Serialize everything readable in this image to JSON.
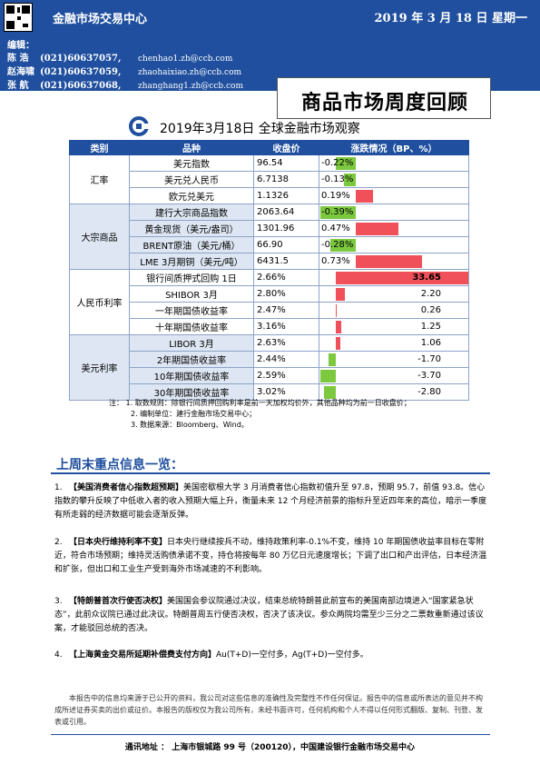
{
  "header": {
    "org_name": "金融市场交易中心",
    "date": "2019 年 3 月 18 日   星期一"
  },
  "editors": {
    "title": "编辑：",
    "list": [
      {
        "name": "陈  浩",
        "phone": "(021)60637057,",
        "email": "chenhao1.zh@ccb.com"
      },
      {
        "name": "赵海啸",
        "phone": "(021)60637059,",
        "email": "zhaohaixiao.zh@ccb.com"
      },
      {
        "name": "张  航",
        "phone": "(021)60637068,",
        "email": "zhanghang1.zh@ccb.com"
      }
    ]
  },
  "report_title": "商品市场周度回顾",
  "table": {
    "title": "2019年3月18日  全球金融市场观察",
    "headers": [
      "类别",
      "品种",
      "收盘价",
      "涨跌情况（BP、%）"
    ],
    "groups": [
      {
        "category": "汇率",
        "rows": [
          {
            "name": "美元指数",
            "price": "96.54",
            "change": "-0.22%",
            "value": -0.22
          },
          {
            "name": "美元兑人民币",
            "price": "6.7138",
            "change": "-0.13%",
            "value": -0.13
          },
          {
            "name": "欧元兑美元",
            "price": "1.1326",
            "change": "0.19%",
            "value": 0.19
          }
        ]
      },
      {
        "category": "大宗商品",
        "rows": [
          {
            "name": "建行大宗商品指数",
            "price": "2063.64",
            "change": "-0.39%",
            "value": -0.39
          },
          {
            "name": "黄金现货（美元/盎司）",
            "price": "1301.96",
            "change": "0.47%",
            "value": 0.47
          },
          {
            "name": "BRENT原油（美元/桶）",
            "price": "66.90",
            "change": "-0.28%",
            "value": -0.28
          },
          {
            "name": "LME 3月期铜（美元/吨）",
            "price": "6431.5",
            "change": "0.73%",
            "value": 0.73
          }
        ]
      },
      {
        "category": "人民币利率",
        "rows": [
          {
            "name": "银行间质押式回购 1日",
            "price": "2.66%",
            "change": "33.65",
            "value": 33.65
          },
          {
            "name": "SHIBOR 3月",
            "price": "2.80%",
            "change": "2.20",
            "value": 2.2
          },
          {
            "name": "一年期国债收益率",
            "price": "2.47%",
            "change": "0.26",
            "value": 0.26
          },
          {
            "name": "十年期国债收益率",
            "price": "3.16%",
            "change": "1.25",
            "value": 1.25
          }
        ]
      },
      {
        "category": "美元利率",
        "rows": [
          {
            "name": "LIBOR 3月",
            "price": "2.63%",
            "change": "1.06",
            "value": 1.06
          },
          {
            "name": "2年期国债收益率",
            "price": "2.44%",
            "change": "-1.70",
            "value": -1.7
          },
          {
            "name": "10年期国债收益率",
            "price": "2.59%",
            "change": "-3.70",
            "value": -3.7
          },
          {
            "name": "30年期国债收益率",
            "price": "3.02%",
            "change": "-2.80",
            "value": -2.8
          }
        ]
      }
    ],
    "notes": [
      "注：  1. 取数规则：除银行间质押回购利率是前一天加权均价外，其他品种均为前一日收盘价；",
      "2. 编制单位：建行金融市场交易中心；",
      "3. 数据来源：Bloomberg、Wind。"
    ]
  },
  "section_title": "上周末重点信息一览：",
  "items": [
    {
      "num": "1.",
      "headline": "【美国消费者信心指数超预期】",
      "text": "美国密歇根大学 3 月消费者信心指数初值升至 97.8，预期 95.7，前值 93.8。信心指数的攀升反映了中低收入者的收入预期大幅上升，衡量未来 12 个月经济前景的指标升至近四年来的高位，暗示一季度有所走弱的经济数据可能会逐渐反弹。"
    },
    {
      "num": "2.",
      "headline": "【日本央行维持利率不变】",
      "text": "日本央行继续按兵不动，维持政策利率-0.1%不变，维持 10 年期国债收益率目标在零附近，符合市场预期；维持灵活购债承诺不变，持仓将按每年 80 万亿日元速度增长；下调了出口和产出评估，日本经济温和扩张，但出口和工业生产受到海外市场减速的不利影响。"
    },
    {
      "num": "3.",
      "headline": "【特朗普首次行使否决权】",
      "text": "美国国会参议院通过决议，结束总统特朗普此前宣布的美国南部边境进入“国家紧急状态”，此前众议院已通过此决议。特朗普周五行使否决权，否决了该决议。参众两院均需至少三分之二票数重新通过该议案，才能驳回总统的否决。"
    },
    {
      "num": "4.",
      "headline": "【上海黄金交易所延期补偿费支付方向】",
      "text": "Au(T+D)一空付多，Ag(T+D)一空付多。"
    }
  ],
  "disclaimer": "本报告中的信息均来源于已公开的资料，我公司对这些信息的准确性及完整性不作任何保证。报告中的信息或所表达的意见并不构成所述证券买卖的出价或征价。本报告的版权仅为我公司所有，未经书面许可，任何机构和个人不得以任何形式翻版、复制、刊登、发表或引用。",
  "footer": "通讯地址 ： 上海市银城路 99 号（200120），中国建设银行金融市场交易中心"
}
